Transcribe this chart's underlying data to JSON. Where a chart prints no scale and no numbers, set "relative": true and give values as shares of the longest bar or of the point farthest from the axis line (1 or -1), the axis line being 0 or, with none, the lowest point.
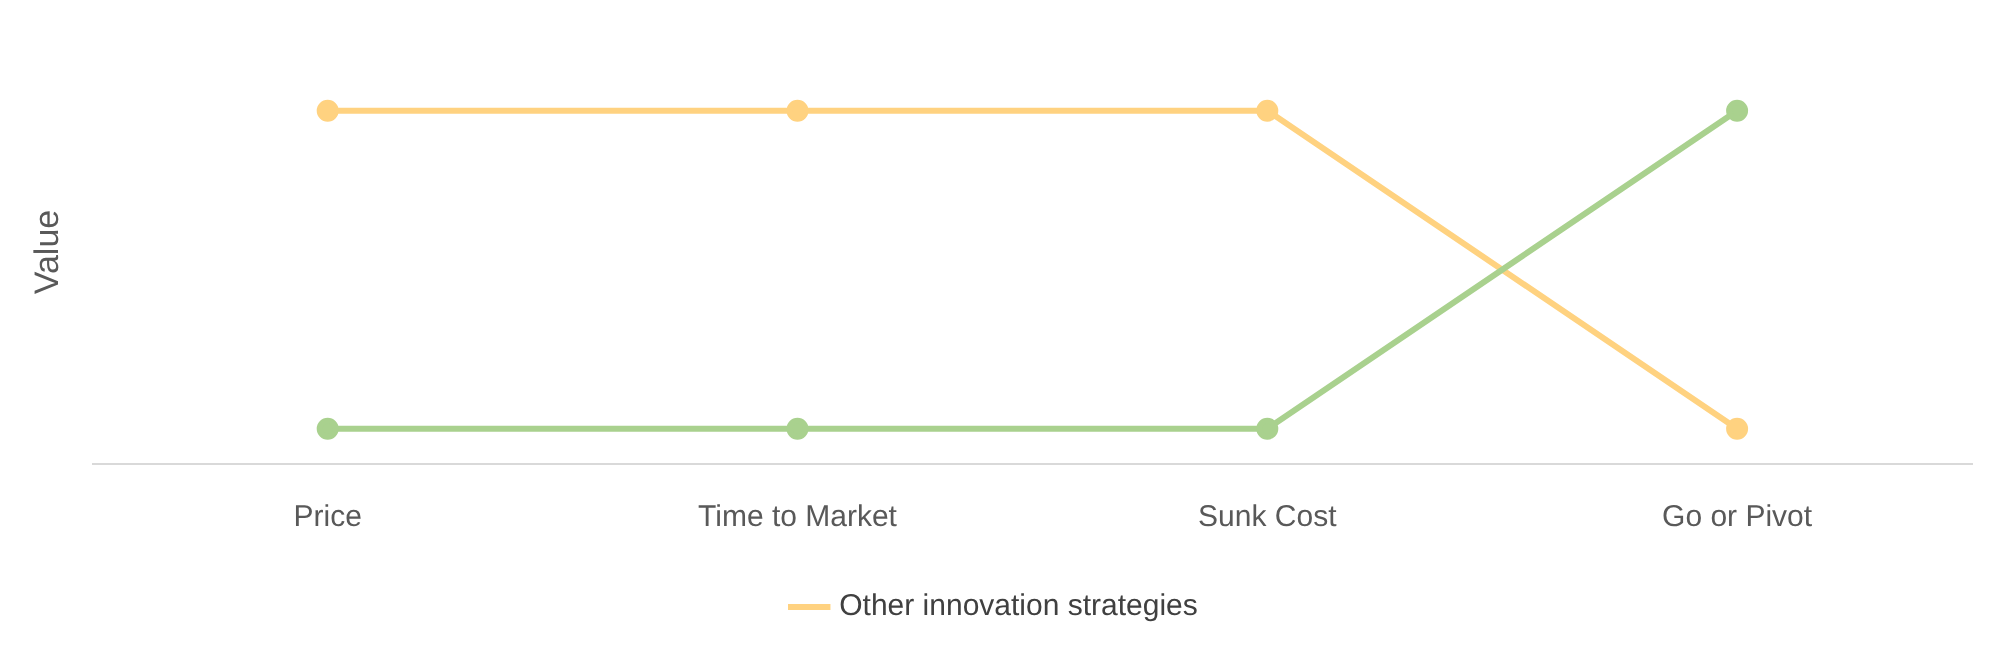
{
  "chart_data": {
    "type": "line",
    "ylabel": "Value",
    "relative": true,
    "categories": [
      "Price",
      "Time to Market",
      "Sunk Cost",
      "Go or Pivot"
    ],
    "series": [
      {
        "color": "#a9d18e",
        "values": [
          0.1,
          0.1,
          0.1,
          1
        ]
      },
      {
        "name": "Other innovation strategies",
        "color": "#ffd280",
        "values": [
          1,
          1,
          1,
          0.1
        ]
      }
    ],
    "legend": "bottom",
    "marker": "circle",
    "grid": false
  }
}
